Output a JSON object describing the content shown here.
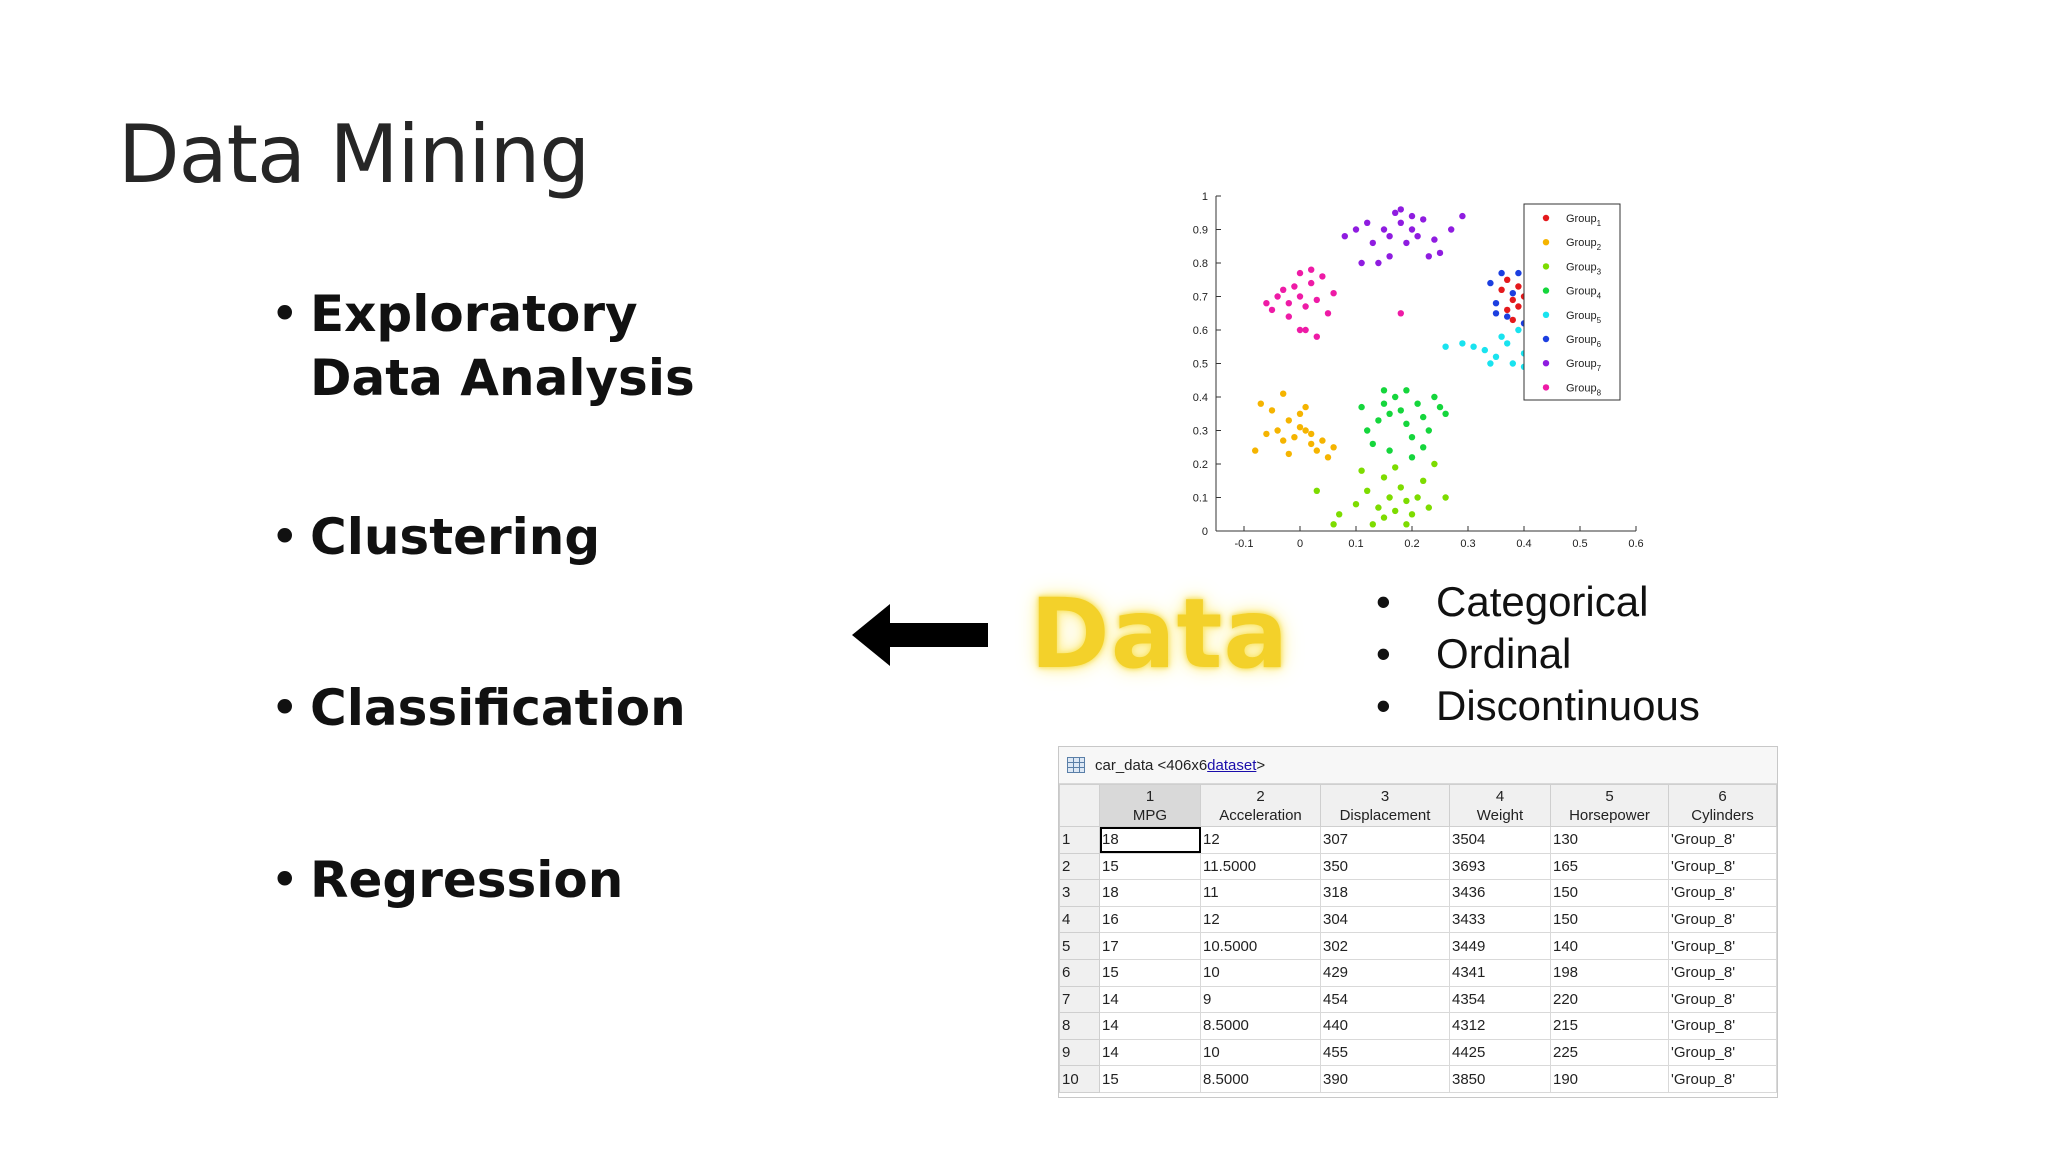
{
  "slide": {
    "title": "Data Mining",
    "bullets": [
      "Exploratory Data Analysis",
      "Clustering",
      "Classification",
      "Regression"
    ],
    "bullet_symbol": "•",
    "data_word": "Data",
    "data_types": [
      "Categorical",
      "Ordinal",
      "Discontinuous"
    ]
  },
  "colors": {
    "Group1": "#e4191c",
    "Group2": "#f5b400",
    "Group3": "#7ddc00",
    "Group4": "#15d63c",
    "Group5": "#19e3ef",
    "Group6": "#1c3fe0",
    "Group7": "#8f1ce0",
    "Group8": "#ee1ba6",
    "data_word": "#f3d12a"
  },
  "chart_data": {
    "type": "scatter",
    "xlim": [
      -0.15,
      0.6
    ],
    "ylim": [
      0,
      1
    ],
    "xticks": [
      "-0.1",
      "0",
      "0.1",
      "0.2",
      "0.3",
      "0.4",
      "0.5",
      "0.6"
    ],
    "yticks": [
      "0",
      "0.1",
      "0.2",
      "0.3",
      "0.4",
      "0.5",
      "0.6",
      "0.7",
      "0.8",
      "0.9",
      "1"
    ],
    "legend_position": "top-right",
    "series": [
      {
        "name": "Group",
        "sub": "1",
        "color": "#e4191c",
        "points": [
          [
            0.37,
            0.75
          ],
          [
            0.39,
            0.73
          ],
          [
            0.41,
            0.76
          ],
          [
            0.38,
            0.69
          ],
          [
            0.4,
            0.7
          ],
          [
            0.42,
            0.74
          ],
          [
            0.36,
            0.72
          ],
          [
            0.43,
            0.71
          ],
          [
            0.39,
            0.67
          ],
          [
            0.41,
            0.65
          ],
          [
            0.44,
            0.75
          ],
          [
            0.38,
            0.63
          ],
          [
            0.42,
            0.68
          ],
          [
            0.37,
            0.66
          ]
        ]
      },
      {
        "name": "Group",
        "sub": "2",
        "color": "#f5b400",
        "points": [
          [
            -0.08,
            0.24
          ],
          [
            -0.06,
            0.29
          ],
          [
            -0.04,
            0.3
          ],
          [
            -0.03,
            0.27
          ],
          [
            -0.02,
            0.33
          ],
          [
            -0.01,
            0.28
          ],
          [
            0,
            0.35
          ],
          [
            0.01,
            0.3
          ],
          [
            0.02,
            0.26
          ],
          [
            0.03,
            0.24
          ],
          [
            0.04,
            0.27
          ],
          [
            -0.05,
            0.36
          ],
          [
            -0.07,
            0.38
          ],
          [
            -0.03,
            0.41
          ],
          [
            0,
            0.31
          ],
          [
            0.02,
            0.29
          ],
          [
            0.05,
            0.22
          ],
          [
            0.06,
            0.25
          ],
          [
            -0.02,
            0.23
          ],
          [
            0.01,
            0.37
          ]
        ]
      },
      {
        "name": "Group",
        "sub": "3",
        "color": "#7ddc00",
        "points": [
          [
            0.13,
            0.02
          ],
          [
            0.15,
            0.04
          ],
          [
            0.14,
            0.07
          ],
          [
            0.16,
            0.1
          ],
          [
            0.17,
            0.06
          ],
          [
            0.18,
            0.13
          ],
          [
            0.19,
            0.09
          ],
          [
            0.2,
            0.05
          ],
          [
            0.21,
            0.1
          ],
          [
            0.22,
            0.15
          ],
          [
            0.12,
            0.12
          ],
          [
            0.11,
            0.18
          ],
          [
            0.15,
            0.16
          ],
          [
            0.17,
            0.19
          ],
          [
            0.23,
            0.07
          ],
          [
            0.24,
            0.2
          ],
          [
            0.07,
            0.05
          ],
          [
            0.06,
            0.02
          ],
          [
            0.03,
            0.12
          ],
          [
            0.26,
            0.1
          ],
          [
            0.1,
            0.08
          ],
          [
            0.19,
            0.02
          ]
        ]
      },
      {
        "name": "Group",
        "sub": "4",
        "color": "#15d63c",
        "points": [
          [
            0.12,
            0.3
          ],
          [
            0.14,
            0.33
          ],
          [
            0.15,
            0.38
          ],
          [
            0.16,
            0.35
          ],
          [
            0.17,
            0.4
          ],
          [
            0.18,
            0.36
          ],
          [
            0.19,
            0.32
          ],
          [
            0.2,
            0.28
          ],
          [
            0.21,
            0.38
          ],
          [
            0.22,
            0.34
          ],
          [
            0.23,
            0.3
          ],
          [
            0.24,
            0.4
          ],
          [
            0.25,
            0.37
          ],
          [
            0.11,
            0.37
          ],
          [
            0.13,
            0.26
          ],
          [
            0.16,
            0.24
          ],
          [
            0.19,
            0.42
          ],
          [
            0.26,
            0.35
          ],
          [
            0.2,
            0.22
          ],
          [
            0.15,
            0.42
          ],
          [
            0.22,
            0.25
          ]
        ]
      },
      {
        "name": "Group",
        "sub": "5",
        "color": "#19e3ef",
        "points": [
          [
            0.26,
            0.55
          ],
          [
            0.29,
            0.56
          ],
          [
            0.31,
            0.55
          ],
          [
            0.33,
            0.54
          ],
          [
            0.35,
            0.52
          ],
          [
            0.37,
            0.56
          ],
          [
            0.38,
            0.5
          ],
          [
            0.4,
            0.53
          ],
          [
            0.41,
            0.57
          ],
          [
            0.42,
            0.55
          ],
          [
            0.43,
            0.51
          ],
          [
            0.36,
            0.58
          ],
          [
            0.39,
            0.6
          ],
          [
            0.34,
            0.5
          ],
          [
            0.44,
            0.58
          ],
          [
            0.4,
            0.49
          ]
        ]
      },
      {
        "name": "Group",
        "sub": "6",
        "color": "#1c3fe0",
        "points": [
          [
            0.34,
            0.74
          ],
          [
            0.35,
            0.68
          ],
          [
            0.37,
            0.64
          ],
          [
            0.39,
            0.77
          ],
          [
            0.4,
            0.62
          ],
          [
            0.42,
            0.79
          ],
          [
            0.43,
            0.66
          ],
          [
            0.44,
            0.61
          ],
          [
            0.41,
            0.72
          ],
          [
            0.38,
            0.71
          ],
          [
            0.35,
            0.65
          ],
          [
            0.36,
            0.77
          ],
          [
            0.44,
            0.7
          ],
          [
            0.42,
            0.84
          ]
        ]
      },
      {
        "name": "Group",
        "sub": "7",
        "color": "#8f1ce0",
        "points": [
          [
            0.08,
            0.88
          ],
          [
            0.1,
            0.9
          ],
          [
            0.12,
            0.92
          ],
          [
            0.13,
            0.86
          ],
          [
            0.15,
            0.9
          ],
          [
            0.16,
            0.88
          ],
          [
            0.17,
            0.95
          ],
          [
            0.18,
            0.92
          ],
          [
            0.19,
            0.86
          ],
          [
            0.2,
            0.9
          ],
          [
            0.21,
            0.88
          ],
          [
            0.22,
            0.93
          ],
          [
            0.24,
            0.87
          ],
          [
            0.25,
            0.83
          ],
          [
            0.27,
            0.9
          ],
          [
            0.29,
            0.94
          ],
          [
            0.16,
            0.82
          ],
          [
            0.14,
            0.8
          ],
          [
            0.11,
            0.8
          ],
          [
            0.23,
            0.82
          ],
          [
            0.18,
            0.96
          ],
          [
            0.2,
            0.94
          ]
        ]
      },
      {
        "name": "Group",
        "sub": "8",
        "color": "#ee1ba6",
        "points": [
          [
            -0.05,
            0.66
          ],
          [
            -0.04,
            0.7
          ],
          [
            -0.03,
            0.72
          ],
          [
            -0.02,
            0.68
          ],
          [
            -0.01,
            0.73
          ],
          [
            0,
            0.7
          ],
          [
            0.01,
            0.67
          ],
          [
            0.02,
            0.74
          ],
          [
            0.03,
            0.69
          ],
          [
            0.04,
            0.76
          ],
          [
            0,
            0.77
          ],
          [
            -0.02,
            0.64
          ],
          [
            0.01,
            0.6
          ],
          [
            0.03,
            0.58
          ],
          [
            0.06,
            0.71
          ],
          [
            -0.06,
            0.68
          ],
          [
            0.05,
            0.65
          ],
          [
            0.02,
            0.78
          ],
          [
            0.18,
            0.65
          ],
          [
            0,
            0.6
          ]
        ]
      }
    ]
  },
  "table": {
    "title_prefix": "car_data <406x6 ",
    "title_link": "dataset",
    "title_suffix": ">",
    "col_numbers": [
      "1",
      "2",
      "3",
      "4",
      "5",
      "6"
    ],
    "headers": [
      "MPG",
      "Acceleration",
      "Displacement",
      "Weight",
      "Horsepower",
      "Cylinders"
    ],
    "rows": [
      [
        "1",
        "18",
        "12",
        "307",
        "3504",
        "130",
        "'Group_8'"
      ],
      [
        "2",
        "15",
        "11.5000",
        "350",
        "3693",
        "165",
        "'Group_8'"
      ],
      [
        "3",
        "18",
        "11",
        "318",
        "3436",
        "150",
        "'Group_8'"
      ],
      [
        "4",
        "16",
        "12",
        "304",
        "3433",
        "150",
        "'Group_8'"
      ],
      [
        "5",
        "17",
        "10.5000",
        "302",
        "3449",
        "140",
        "'Group_8'"
      ],
      [
        "6",
        "15",
        "10",
        "429",
        "4341",
        "198",
        "'Group_8'"
      ],
      [
        "7",
        "14",
        "9",
        "454",
        "4354",
        "220",
        "'Group_8'"
      ],
      [
        "8",
        "14",
        "8.5000",
        "440",
        "4312",
        "215",
        "'Group_8'"
      ],
      [
        "9",
        "14",
        "10",
        "455",
        "4425",
        "225",
        "'Group_8'"
      ],
      [
        "10",
        "15",
        "8.5000",
        "390",
        "3850",
        "190",
        "'Group_8'"
      ]
    ]
  }
}
